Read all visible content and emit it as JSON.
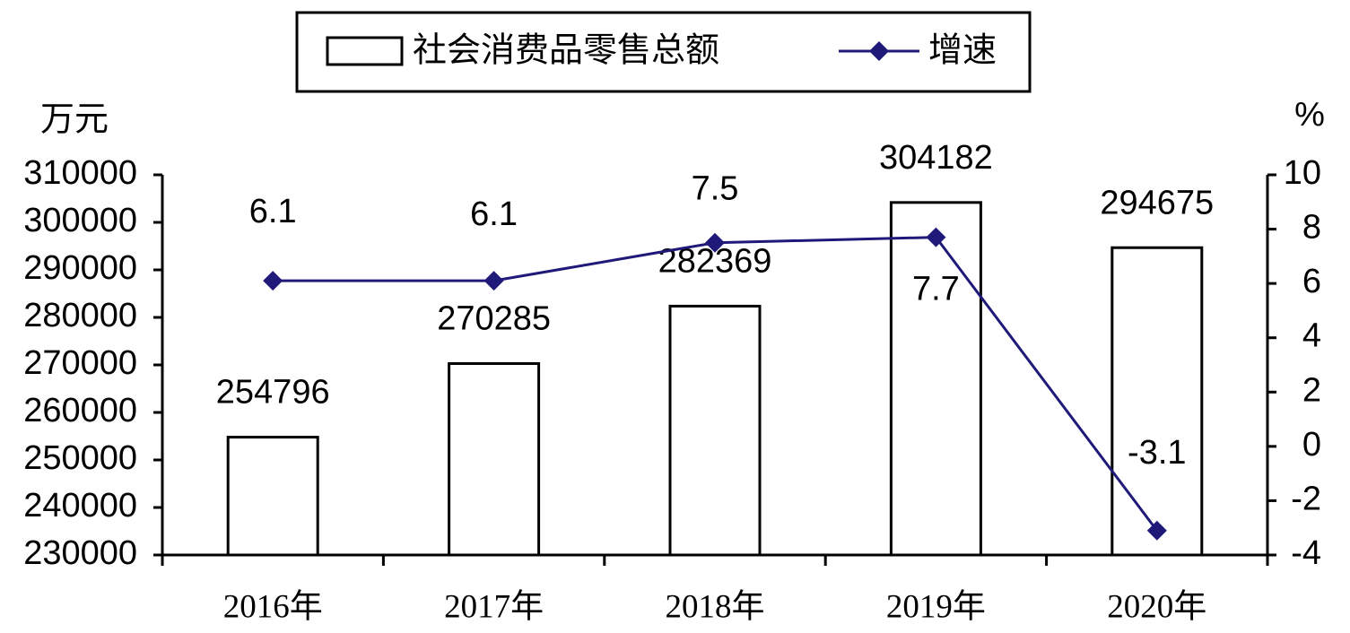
{
  "chart_data": {
    "type": "combo",
    "y_unit": "万元",
    "y2_unit": "%",
    "categories": [
      "2016年",
      "2017年",
      "2018年",
      "2019年",
      "2020年"
    ],
    "series": [
      {
        "name": "社会消费品零售总额",
        "type": "bar",
        "color": "#ffffff",
        "values": [
          254796,
          270285,
          282369,
          304182,
          294675
        ]
      },
      {
        "name": "增速",
        "type": "line",
        "axis": "y2",
        "color": "#1f1a7a",
        "values": [
          6.1,
          6.1,
          7.5,
          7.7,
          -3.1
        ]
      }
    ],
    "ylim": [
      230000,
      310000
    ],
    "yticks": [
      230000,
      240000,
      250000,
      260000,
      270000,
      280000,
      290000,
      300000,
      310000
    ],
    "y2lim": [
      -4,
      10
    ],
    "y2ticks": [
      -4,
      -2,
      0,
      2,
      4,
      6,
      8,
      10
    ]
  }
}
